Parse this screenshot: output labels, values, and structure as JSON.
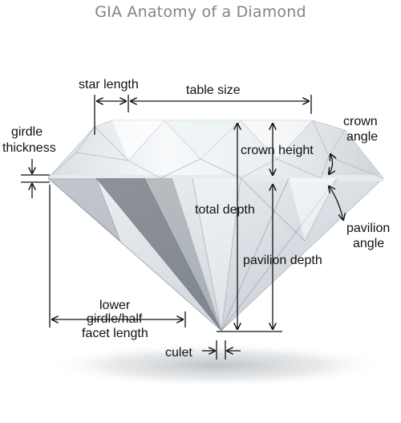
{
  "title": "GIA Anatomy of a Diamond",
  "labels": {
    "star_length": "star length",
    "table_size": "table size",
    "girdle_thickness": [
      "girdle",
      "thickness"
    ],
    "crown_angle": [
      "crown",
      "angle"
    ],
    "crown_height": "crown height",
    "total_depth": "total depth",
    "pavilion_angle": [
      "pavilion",
      "angle"
    ],
    "pavilion_depth": "pavilion depth",
    "lower_girdle_half_facet_length": [
      "lower",
      "girdle/half",
      "facet length"
    ],
    "culet": "culet"
  },
  "colors": {
    "title": "#7f8487",
    "text": "#111111",
    "diamond_light": "#f4f6f8",
    "diamond_mid": "#c9d0d6",
    "diamond_dark": "#3a4048"
  }
}
